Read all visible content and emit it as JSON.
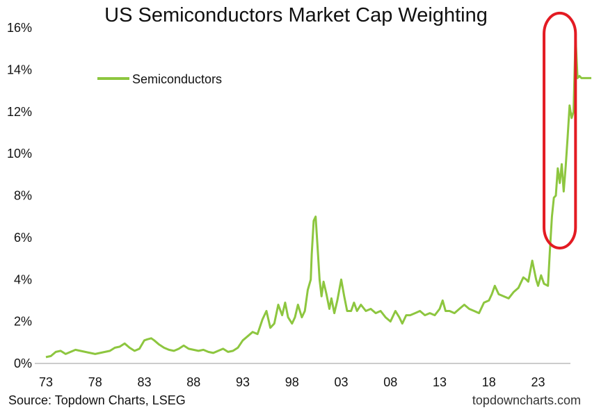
{
  "chart_data": {
    "type": "line",
    "title": "US Semiconductors Market Cap Weighting",
    "xlabel": "",
    "ylabel": "",
    "xlim": [
      1973,
      2026
    ],
    "ylim": [
      0,
      16
    ],
    "x_tick_labels": [
      "73",
      "78",
      "83",
      "88",
      "93",
      "98",
      "03",
      "08",
      "13",
      "18",
      "23"
    ],
    "x_tick_values": [
      1973,
      1978,
      1983,
      1988,
      1993,
      1998,
      2003,
      2008,
      2013,
      2018,
      2023
    ],
    "y_tick_labels": [
      "0%",
      "2%",
      "4%",
      "6%",
      "8%",
      "10%",
      "12%",
      "14%",
      "16%"
    ],
    "y_tick_values": [
      0,
      2,
      4,
      6,
      8,
      10,
      12,
      14,
      16
    ],
    "grid": false,
    "legend_position": "top-left",
    "series": [
      {
        "name": "Semiconductors",
        "color": "#8dc63f",
        "x": [
          1973.0,
          1973.5,
          1974.0,
          1974.5,
          1975.0,
          1975.5,
          1976.0,
          1976.5,
          1977.0,
          1977.5,
          1978.0,
          1978.5,
          1979.0,
          1979.5,
          1980.0,
          1980.5,
          1981.0,
          1981.5,
          1982.0,
          1982.5,
          1983.0,
          1983.3,
          1983.7,
          1984.0,
          1984.5,
          1985.0,
          1985.5,
          1986.0,
          1986.5,
          1987.0,
          1987.5,
          1988.0,
          1988.5,
          1989.0,
          1989.5,
          1990.0,
          1990.5,
          1991.0,
          1991.5,
          1992.0,
          1992.5,
          1993.0,
          1993.5,
          1994.0,
          1994.5,
          1995.0,
          1995.4,
          1995.8,
          1996.2,
          1996.6,
          1997.0,
          1997.3,
          1997.6,
          1998.0,
          1998.3,
          1998.6,
          1999.0,
          1999.3,
          1999.6,
          1999.9,
          2000.0,
          2000.2,
          2000.4,
          2000.6,
          2000.8,
          2001.0,
          2001.2,
          2001.5,
          2001.8,
          2002.0,
          2002.3,
          2002.6,
          2003.0,
          2003.3,
          2003.6,
          2004.0,
          2004.3,
          2004.6,
          2005.0,
          2005.5,
          2006.0,
          2006.5,
          2007.0,
          2007.5,
          2008.0,
          2008.5,
          2008.9,
          2009.2,
          2009.6,
          2010.0,
          2010.5,
          2011.0,
          2011.5,
          2012.0,
          2012.5,
          2013.0,
          2013.3,
          2013.6,
          2014.0,
          2014.5,
          2015.0,
          2015.5,
          2016.0,
          2016.5,
          2017.0,
          2017.5,
          2018.0,
          2018.3,
          2018.6,
          2019.0,
          2019.5,
          2020.0,
          2020.5,
          2021.0,
          2021.5,
          2021.8,
          2022.0,
          2022.4,
          2022.8,
          2023.0,
          2023.3,
          2023.6,
          2024.0,
          2024.2,
          2024.4,
          2024.6,
          2024.8,
          2025.0,
          2025.2,
          2025.4,
          2025.6,
          2025.8,
          2026.0,
          2026.2,
          2026.4,
          2026.6,
          2026.8,
          2027.0,
          2027.2,
          2027.4,
          2027.6,
          2027.8,
          2028.0,
          2028.2,
          2028.4
        ],
        "y": [
          0.3,
          0.35,
          0.55,
          0.6,
          0.45,
          0.55,
          0.65,
          0.6,
          0.55,
          0.5,
          0.45,
          0.5,
          0.55,
          0.6,
          0.75,
          0.8,
          0.95,
          0.75,
          0.6,
          0.7,
          1.1,
          1.15,
          1.2,
          1.1,
          0.9,
          0.75,
          0.65,
          0.6,
          0.7,
          0.85,
          0.7,
          0.65,
          0.6,
          0.65,
          0.55,
          0.5,
          0.6,
          0.7,
          0.55,
          0.6,
          0.75,
          1.1,
          1.3,
          1.5,
          1.4,
          2.1,
          2.5,
          1.7,
          1.9,
          2.8,
          2.3,
          2.9,
          2.2,
          1.9,
          2.2,
          2.8,
          2.2,
          2.5,
          3.5,
          4.0,
          5.2,
          6.8,
          7.0,
          5.5,
          4.0,
          3.2,
          3.9,
          3.3,
          2.6,
          3.1,
          2.4,
          3.0,
          4.0,
          3.2,
          2.5,
          2.5,
          2.9,
          2.5,
          2.8,
          2.5,
          2.6,
          2.4,
          2.5,
          2.2,
          2.0,
          2.5,
          2.2,
          1.9,
          2.3,
          2.3,
          2.4,
          2.5,
          2.3,
          2.4,
          2.3,
          2.6,
          3.0,
          2.5,
          2.5,
          2.4,
          2.6,
          2.8,
          2.6,
          2.5,
          2.4,
          2.9,
          3.0,
          3.3,
          3.7,
          3.3,
          3.2,
          3.1,
          3.4,
          3.6,
          4.1,
          4.0,
          3.9,
          4.9,
          4.0,
          3.7,
          4.2,
          3.8,
          3.7,
          5.4,
          7.0,
          7.9,
          8.0,
          9.3,
          8.6,
          9.5,
          8.2,
          9.4,
          10.8,
          12.3,
          11.7,
          12.0,
          15.6,
          13.6,
          13.7,
          13.6,
          13.6,
          13.6,
          13.6,
          13.6,
          13.6
        ]
      }
    ],
    "annotations": [
      {
        "type": "ellipse-highlight",
        "color": "#e31b23",
        "x_range": [
          2023.6,
          2026.8
        ],
        "y_range": [
          5.5,
          16.7
        ]
      }
    ]
  },
  "footer": {
    "source": "Source: Topdown Charts, LSEG",
    "brand": "topdowncharts.com"
  }
}
